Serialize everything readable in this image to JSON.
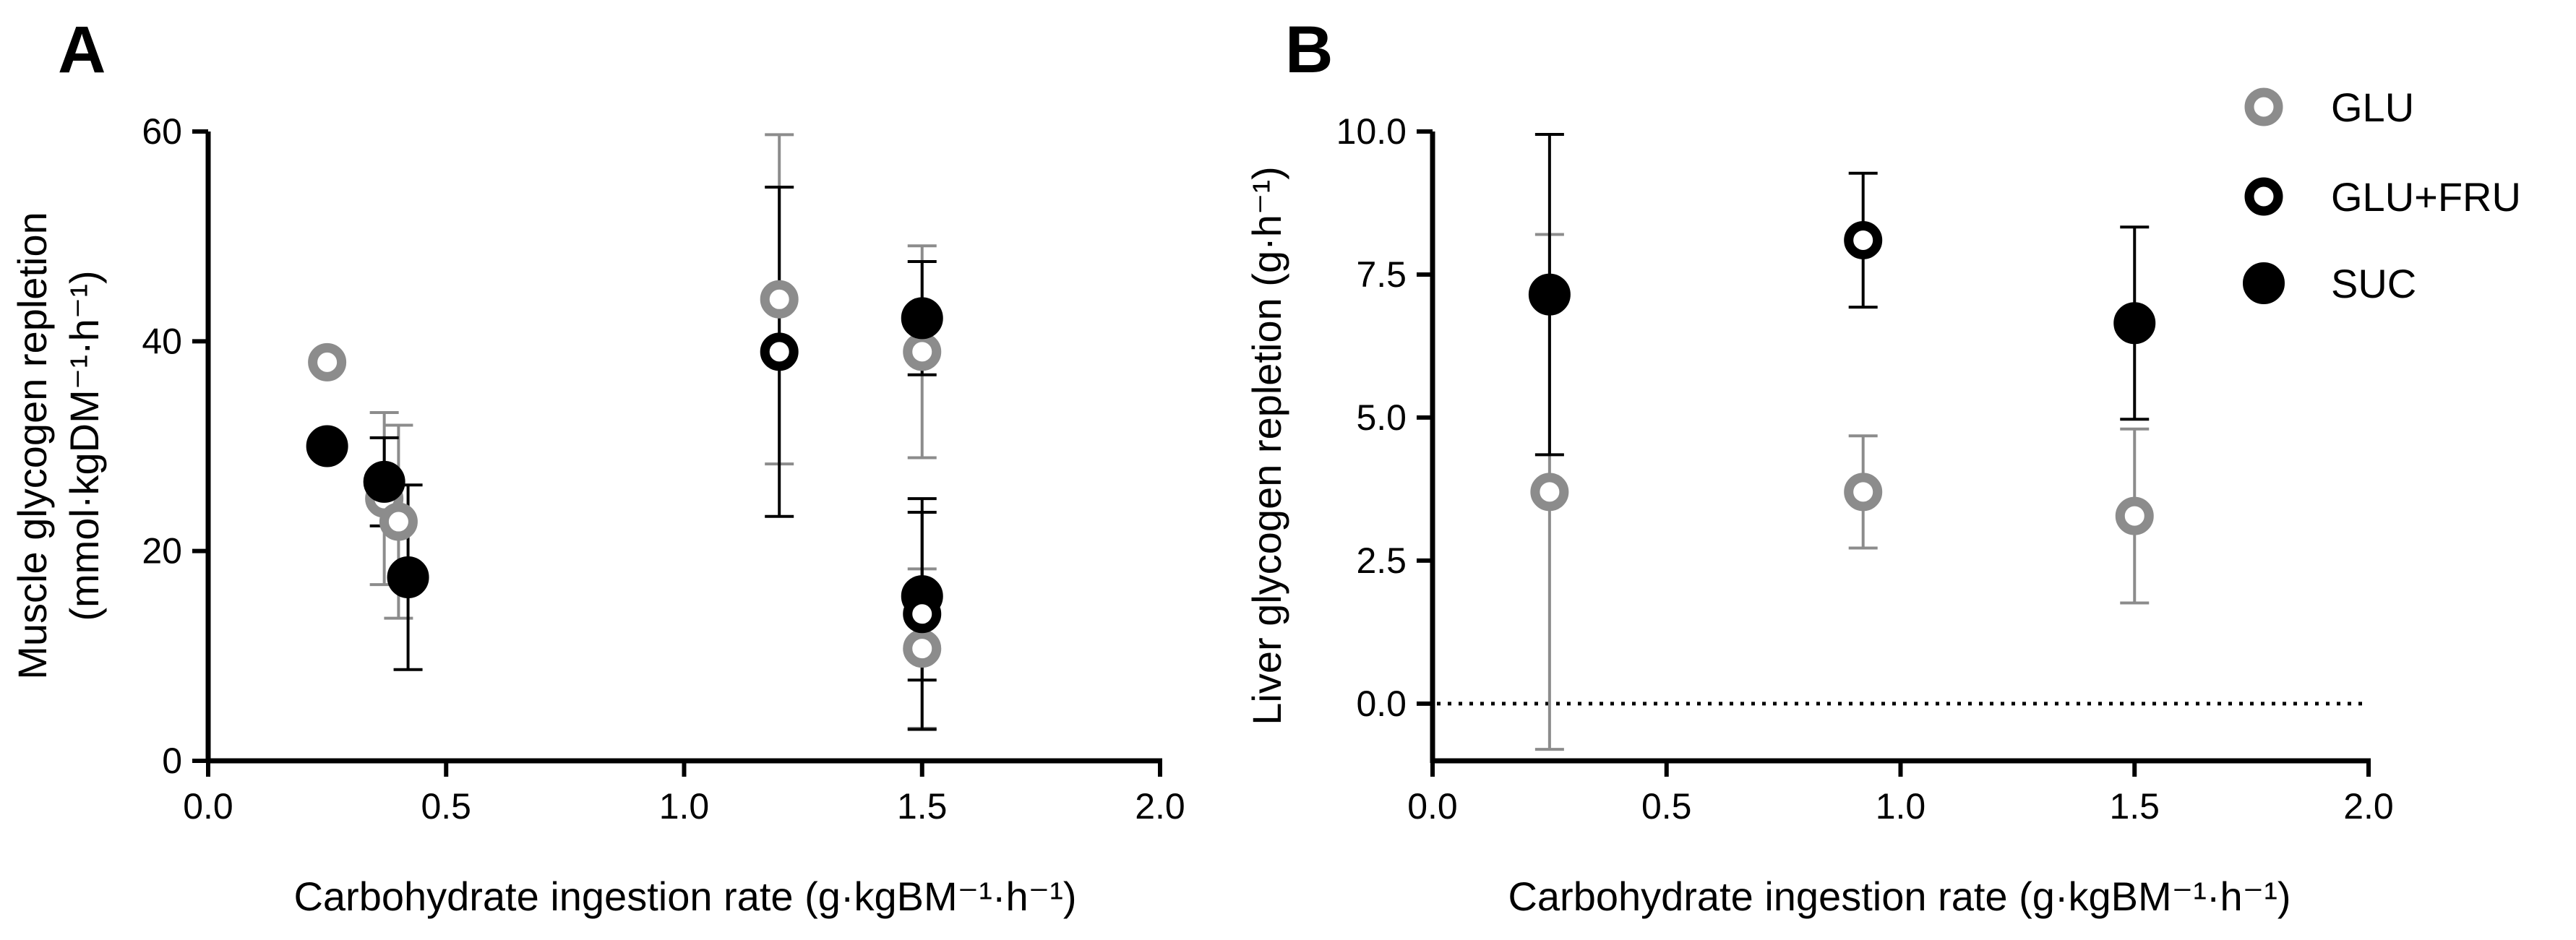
{
  "colors": {
    "GLU": "#8c8c8c",
    "GLU+FRU": "#000000",
    "SUC": "#000000",
    "axis": "#000000"
  },
  "legend": [
    {
      "label": "GLU",
      "style": "open-grey"
    },
    {
      "label": "GLU+FRU",
      "style": "open-black"
    },
    {
      "label": "SUC",
      "style": "filled-black"
    }
  ],
  "chart_data": [
    {
      "panel": "A",
      "type": "scatter",
      "xlabel": "Carbohydrate ingestion rate (g·kgBM⁻¹·h⁻¹)",
      "ylabel_line1": "Muscle glycogen repletion",
      "ylabel_line2": "(mmol·kgDM⁻¹·h⁻¹)",
      "xlim": [
        0,
        2.0
      ],
      "ylim": [
        0,
        60
      ],
      "xticks": [
        0.0,
        0.5,
        1.0,
        1.5,
        2.0
      ],
      "xtick_labels": [
        "0.0",
        "0.5",
        "1.0",
        "1.5",
        "2.0"
      ],
      "yticks": [
        0,
        20,
        40,
        60
      ],
      "ytick_labels": [
        "0",
        "20",
        "40",
        "60"
      ],
      "series": [
        {
          "name": "GLU",
          "points": [
            {
              "x": 0.25,
              "y": 38,
              "err": null
            },
            {
              "x": 0.37,
              "y": 25,
              "err": 8.2
            },
            {
              "x": 0.4,
              "y": 22.8,
              "err": 9.2
            },
            {
              "x": 1.2,
              "y": 44,
              "err": 15.7
            },
            {
              "x": 1.5,
              "y": 39,
              "err": 10.1
            },
            {
              "x": 1.5,
              "y": 10.7,
              "err": 7.6
            }
          ]
        },
        {
          "name": "GLU+FRU",
          "points": [
            {
              "x": 1.2,
              "y": 39,
              "err": 15.7
            },
            {
              "x": 1.5,
              "y": 14,
              "err": 11
            }
          ]
        },
        {
          "name": "SUC",
          "points": [
            {
              "x": 0.25,
              "y": 30,
              "err": null
            },
            {
              "x": 0.37,
              "y": 26.6,
              "err": 4.2
            },
            {
              "x": 0.42,
              "y": 17.5,
              "err": 8.8
            },
            {
              "x": 1.5,
              "y": 42.2,
              "err": 5.4
            },
            {
              "x": 1.5,
              "y": 15.7,
              "err": 8
            }
          ]
        }
      ]
    },
    {
      "panel": "B",
      "type": "scatter",
      "xlabel": "Carbohydrate ingestion rate (g·kgBM⁻¹·h⁻¹)",
      "ylabel_line1": "Liver glycogen repletion (g·h⁻¹)",
      "xlim": [
        0,
        2.0
      ],
      "ylim": [
        -1,
        10
      ],
      "xticks": [
        0.0,
        0.5,
        1.0,
        1.5,
        2.0
      ],
      "xtick_labels": [
        "0.0",
        "0.5",
        "1.0",
        "1.5",
        "2.0"
      ],
      "yticks": [
        0,
        2.5,
        5,
        7.5,
        10
      ],
      "ytick_labels": [
        "0.0",
        "2.5",
        "5.0",
        "7.5",
        "10.0"
      ],
      "reference_line": {
        "y": 0,
        "style": "dotted"
      },
      "series": [
        {
          "name": "GLU",
          "points": [
            {
              "x": 0.25,
              "y": 3.7,
              "err": 4.5
            },
            {
              "x": 0.92,
              "y": 3.7,
              "err": 0.98
            },
            {
              "x": 1.5,
              "y": 3.28,
              "err": 1.52
            }
          ]
        },
        {
          "name": "GLU+FRU",
          "points": [
            {
              "x": 0.92,
              "y": 8.1,
              "err": 1.17
            }
          ]
        },
        {
          "name": "SUC",
          "points": [
            {
              "x": 0.25,
              "y": 7.15,
              "err": 2.8
            },
            {
              "x": 1.5,
              "y": 6.65,
              "err": 1.68
            }
          ]
        }
      ]
    }
  ]
}
